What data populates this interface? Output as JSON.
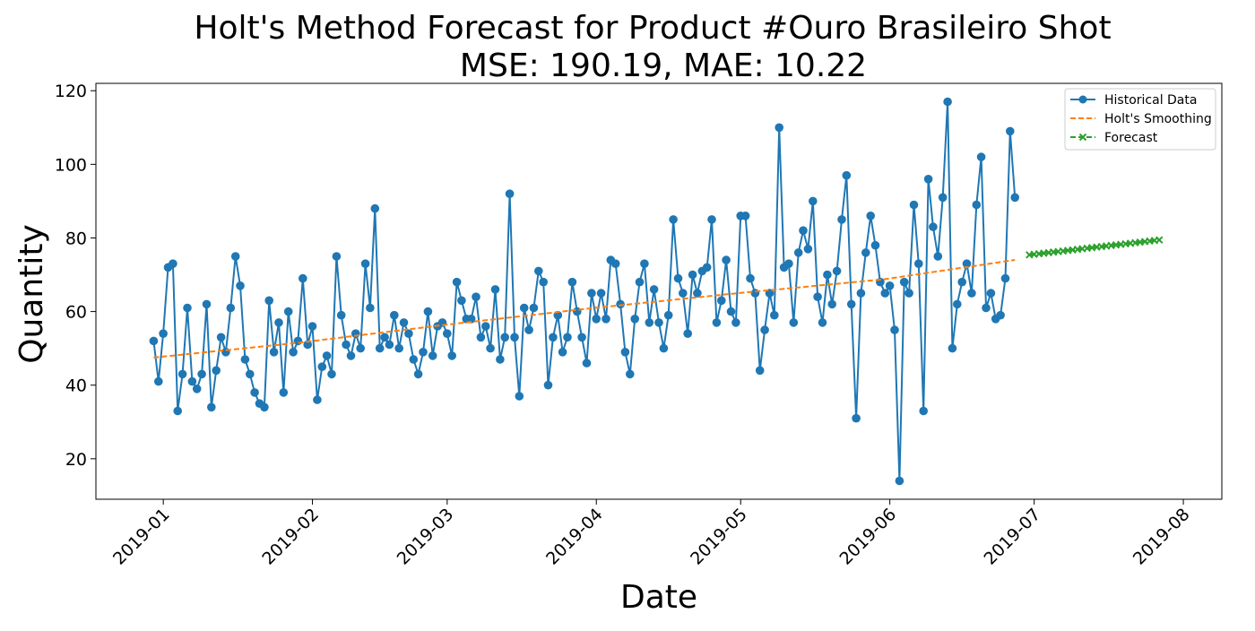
{
  "chart_data": {
    "type": "line",
    "title": "Holt's Method Forecast for Product #Ouro Brasileiro Shot",
    "subtitle": "MSE: 190.19, MAE: 10.22",
    "xlabel": "Date",
    "ylabel": "Quantity",
    "x_range": [
      "2018-12-18",
      "2019-08-09"
    ],
    "ylim": [
      9,
      122
    ],
    "grid": false,
    "legend_position": "upper-right",
    "x_ticks": [
      "2019-01",
      "2019-02",
      "2019-03",
      "2019-04",
      "2019-05",
      "2019-06",
      "2019-07",
      "2019-08"
    ],
    "y_ticks": [
      20,
      40,
      60,
      80,
      100,
      120
    ],
    "history_start": "2018-12-30",
    "forecast_start": "2019-06-30",
    "series": [
      {
        "name": "Historical Data",
        "style": "line-dot",
        "color": "#1f77b4",
        "values": [
          52,
          41,
          54,
          72,
          73,
          33,
          43,
          61,
          41,
          39,
          43,
          62,
          34,
          44,
          53,
          49,
          61,
          75,
          67,
          47,
          43,
          38,
          35,
          34,
          63,
          49,
          57,
          38,
          60,
          49,
          52,
          69,
          51,
          56,
          36,
          45,
          48,
          43,
          75,
          59,
          51,
          48,
          54,
          50,
          73,
          61,
          88,
          50,
          53,
          51,
          59,
          50,
          57,
          54,
          47,
          43,
          49,
          60,
          48,
          56,
          57,
          54,
          48,
          68,
          63,
          58,
          58,
          64,
          53,
          56,
          50,
          66,
          47,
          53,
          92,
          53,
          37,
          61,
          55,
          61,
          71,
          68,
          40,
          53,
          59,
          49,
          53,
          68,
          60,
          53,
          46,
          65,
          58,
          65,
          58,
          74,
          73,
          62,
          49,
          43,
          58,
          68,
          73,
          57,
          66,
          57,
          50,
          59,
          85,
          69,
          65,
          54,
          70,
          65,
          71,
          72,
          85,
          57,
          63,
          74,
          60,
          57,
          86,
          86,
          69,
          65,
          44,
          55,
          65,
          59,
          110,
          72,
          73,
          57,
          76,
          82,
          77,
          90,
          64,
          57,
          70,
          62,
          71,
          85,
          97,
          62,
          31,
          65,
          76,
          86,
          78,
          68,
          65,
          67,
          55,
          14,
          68,
          65,
          89,
          73,
          33,
          96,
          83,
          75,
          91,
          117,
          50,
          62,
          68,
          73,
          65,
          89,
          102,
          61,
          65,
          58,
          59,
          69,
          109,
          91
        ]
      },
      {
        "name": "Holt's Smoothing",
        "style": "dashed",
        "color": "#ff7f0e",
        "anchors": [
          [
            0,
            47.5
          ],
          [
            30,
            51.5
          ],
          [
            60,
            56.3
          ],
          [
            91,
            60.9
          ],
          [
            120,
            64.8
          ],
          [
            152,
            68.8
          ],
          [
            182,
            74.6
          ]
        ]
      },
      {
        "name": "Forecast",
        "style": "dashed-x",
        "color": "#2ca02c",
        "values": [
          75.4,
          75.55,
          75.7,
          75.85,
          76.0,
          76.15,
          76.3,
          76.45,
          76.6,
          76.75,
          76.9,
          77.05,
          77.2,
          77.35,
          77.5,
          77.65,
          77.8,
          77.95,
          78.1,
          78.25,
          78.4,
          78.55,
          78.7,
          78.85,
          79.0,
          79.15,
          79.3,
          79.45
        ]
      }
    ]
  }
}
